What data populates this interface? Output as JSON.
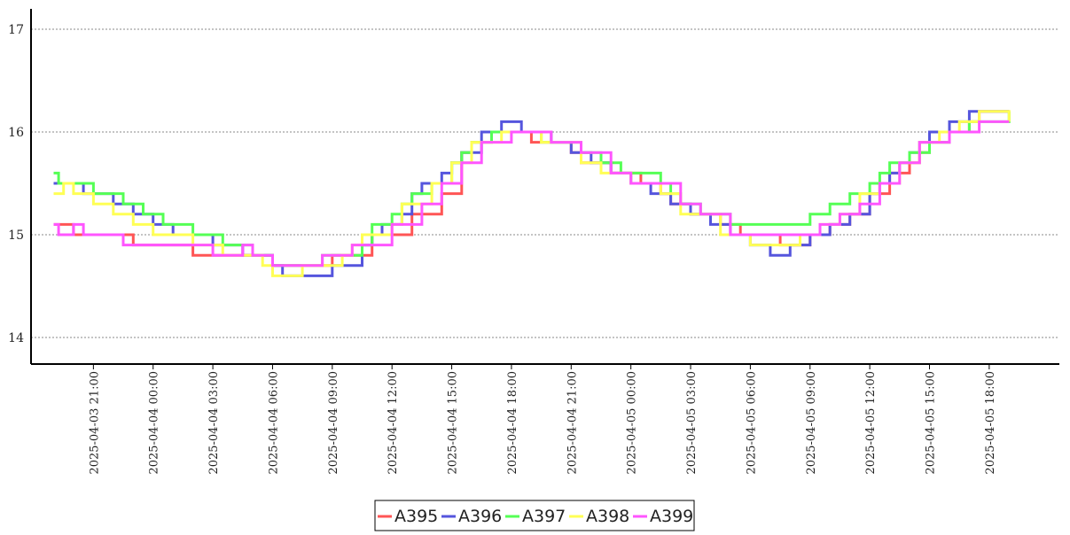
{
  "chart_data": {
    "type": "line",
    "title": "",
    "xlabel": "",
    "ylabel": "",
    "ylim": [
      13.7,
      17.2
    ],
    "y_ticks": [
      14,
      15,
      16,
      17
    ],
    "x_range": [
      "2025-04-03 18:00",
      "2025-04-05 20:30"
    ],
    "x_ticks": [
      "2025-04-03 21:00",
      "2025-04-04 00:00",
      "2025-04-04 03:00",
      "2025-04-04 06:00",
      "2025-04-04 09:00",
      "2025-04-04 12:00",
      "2025-04-04 15:00",
      "2025-04-04 18:00",
      "2025-04-04 21:00",
      "2025-04-05 00:00",
      "2025-04-05 03:00",
      "2025-04-05 06:00",
      "2025-04-05 09:00",
      "2025-04-05 12:00",
      "2025-04-05 15:00",
      "2025-04-05 18:00"
    ],
    "grid": "horizontal dotted",
    "legend_position": "bottom-center",
    "line_style": "step",
    "series": [
      {
        "name": "A395",
        "color": "#ff5555",
        "points": [
          [
            "2025-04-03 19:00",
            15.1
          ],
          [
            "2025-04-03 20:00",
            15.0
          ],
          [
            "2025-04-03 23:00",
            14.9
          ],
          [
            "2025-04-04 02:00",
            14.8
          ],
          [
            "2025-04-04 06:00",
            14.7
          ],
          [
            "2025-04-04 09:00",
            14.8
          ],
          [
            "2025-04-04 11:00",
            15.0
          ],
          [
            "2025-04-04 13:00",
            15.2
          ],
          [
            "2025-04-04 14:30",
            15.4
          ],
          [
            "2025-04-04 15:30",
            15.8
          ],
          [
            "2025-04-04 16:00",
            15.9
          ],
          [
            "2025-04-04 17:00",
            16.0
          ],
          [
            "2025-04-04 19:00",
            15.9
          ],
          [
            "2025-04-04 21:00",
            15.8
          ],
          [
            "2025-04-04 21:30",
            15.7
          ],
          [
            "2025-04-04 23:00",
            15.6
          ],
          [
            "2025-04-05 00:30",
            15.5
          ],
          [
            "2025-04-05 01:30",
            15.4
          ],
          [
            "2025-04-05 02:00",
            15.3
          ],
          [
            "2025-04-05 03:00",
            15.2
          ],
          [
            "2025-04-05 04:30",
            15.1
          ],
          [
            "2025-04-05 05:30",
            15.0
          ],
          [
            "2025-04-05 07:30",
            14.9
          ],
          [
            "2025-04-05 08:00",
            14.9
          ],
          [
            "2025-04-05 09:00",
            15.0
          ],
          [
            "2025-04-05 10:00",
            15.1
          ],
          [
            "2025-04-05 11:00",
            15.2
          ],
          [
            "2025-04-05 12:00",
            15.4
          ],
          [
            "2025-04-05 13:00",
            15.6
          ],
          [
            "2025-04-05 14:00",
            15.7
          ],
          [
            "2025-04-05 14:30",
            15.8
          ],
          [
            "2025-04-05 15:00",
            15.9
          ],
          [
            "2025-04-05 16:00",
            16.0
          ],
          [
            "2025-04-05 17:00",
            16.1
          ],
          [
            "2025-04-05 17:30",
            16.2
          ],
          [
            "2025-04-05 19:00",
            16.2
          ]
        ]
      },
      {
        "name": "A396",
        "color": "#5555dd",
        "points": [
          [
            "2025-04-03 19:00",
            15.5
          ],
          [
            "2025-04-03 20:30",
            15.4
          ],
          [
            "2025-04-03 22:00",
            15.3
          ],
          [
            "2025-04-03 23:00",
            15.2
          ],
          [
            "2025-04-04 00:00",
            15.1
          ],
          [
            "2025-04-04 01:00",
            15.0
          ],
          [
            "2025-04-04 03:00",
            14.9
          ],
          [
            "2025-04-04 04:30",
            14.8
          ],
          [
            "2025-04-04 06:00",
            14.7
          ],
          [
            "2025-04-04 06:30",
            14.6
          ],
          [
            "2025-04-04 09:00",
            14.7
          ],
          [
            "2025-04-04 10:30",
            14.9
          ],
          [
            "2025-04-04 11:00",
            15.0
          ],
          [
            "2025-04-04 11:30",
            15.1
          ],
          [
            "2025-04-04 12:30",
            15.2
          ],
          [
            "2025-04-04 13:00",
            15.4
          ],
          [
            "2025-04-04 13:30",
            15.5
          ],
          [
            "2025-04-04 14:30",
            15.6
          ],
          [
            "2025-04-04 15:00",
            15.7
          ],
          [
            "2025-04-04 15:30",
            15.8
          ],
          [
            "2025-04-04 16:30",
            16.0
          ],
          [
            "2025-04-04 17:30",
            16.1
          ],
          [
            "2025-04-04 18:30",
            16.0
          ],
          [
            "2025-04-04 20:00",
            15.9
          ],
          [
            "2025-04-04 21:00",
            15.8
          ],
          [
            "2025-04-04 22:00",
            15.7
          ],
          [
            "2025-04-04 23:00",
            15.6
          ],
          [
            "2025-04-05 00:00",
            15.5
          ],
          [
            "2025-04-05 01:00",
            15.4
          ],
          [
            "2025-04-05 02:00",
            15.3
          ],
          [
            "2025-04-05 03:00",
            15.2
          ],
          [
            "2025-04-05 04:00",
            15.1
          ],
          [
            "2025-04-05 05:00",
            15.0
          ],
          [
            "2025-04-05 06:00",
            14.9
          ],
          [
            "2025-04-05 07:00",
            14.8
          ],
          [
            "2025-04-05 08:00",
            14.9
          ],
          [
            "2025-04-05 09:00",
            15.0
          ],
          [
            "2025-04-05 10:00",
            15.1
          ],
          [
            "2025-04-05 11:00",
            15.2
          ],
          [
            "2025-04-05 12:00",
            15.4
          ],
          [
            "2025-04-05 12:30",
            15.5
          ],
          [
            "2025-04-05 13:00",
            15.6
          ],
          [
            "2025-04-05 13:30",
            15.7
          ],
          [
            "2025-04-05 14:00",
            15.8
          ],
          [
            "2025-04-05 14:30",
            15.9
          ],
          [
            "2025-04-05 15:00",
            16.0
          ],
          [
            "2025-04-05 16:00",
            16.1
          ],
          [
            "2025-04-05 17:00",
            16.2
          ],
          [
            "2025-04-05 19:00",
            16.2
          ]
        ]
      },
      {
        "name": "A397",
        "color": "#55ff55",
        "points": [
          [
            "2025-04-03 19:00",
            15.6
          ],
          [
            "2025-04-03 19:15",
            15.5
          ],
          [
            "2025-04-03 21:00",
            15.4
          ],
          [
            "2025-04-03 22:30",
            15.3
          ],
          [
            "2025-04-03 23:30",
            15.2
          ],
          [
            "2025-04-04 00:30",
            15.1
          ],
          [
            "2025-04-04 02:00",
            15.0
          ],
          [
            "2025-04-04 03:30",
            14.9
          ],
          [
            "2025-04-04 05:00",
            14.8
          ],
          [
            "2025-04-04 06:00",
            14.7
          ],
          [
            "2025-04-04 08:30",
            14.8
          ],
          [
            "2025-04-04 10:30",
            14.9
          ],
          [
            "2025-04-04 11:00",
            15.1
          ],
          [
            "2025-04-04 12:00",
            15.2
          ],
          [
            "2025-04-04 12:30",
            15.3
          ],
          [
            "2025-04-04 13:00",
            15.4
          ],
          [
            "2025-04-04 14:00",
            15.5
          ],
          [
            "2025-04-04 15:00",
            15.7
          ],
          [
            "2025-04-04 15:30",
            15.8
          ],
          [
            "2025-04-04 16:00",
            15.9
          ],
          [
            "2025-04-04 17:00",
            16.0
          ],
          [
            "2025-04-04 19:30",
            15.9
          ],
          [
            "2025-04-04 21:30",
            15.8
          ],
          [
            "2025-04-04 22:30",
            15.7
          ],
          [
            "2025-04-04 23:30",
            15.6
          ],
          [
            "2025-04-05 01:30",
            15.5
          ],
          [
            "2025-04-05 02:00",
            15.4
          ],
          [
            "2025-04-05 02:30",
            15.3
          ],
          [
            "2025-04-05 03:30",
            15.2
          ],
          [
            "2025-04-05 05:00",
            15.1
          ],
          [
            "2025-04-05 07:30",
            15.1
          ],
          [
            "2025-04-05 09:00",
            15.2
          ],
          [
            "2025-04-05 10:00",
            15.3
          ],
          [
            "2025-04-05 11:00",
            15.4
          ],
          [
            "2025-04-05 12:00",
            15.5
          ],
          [
            "2025-04-05 12:30",
            15.6
          ],
          [
            "2025-04-05 13:00",
            15.7
          ],
          [
            "2025-04-05 14:00",
            15.8
          ],
          [
            "2025-04-05 15:00",
            15.9
          ],
          [
            "2025-04-05 16:00",
            16.0
          ],
          [
            "2025-04-05 17:00",
            16.1
          ],
          [
            "2025-04-05 19:00",
            16.2
          ]
        ]
      },
      {
        "name": "A398",
        "color": "#ffff55",
        "points": [
          [
            "2025-04-03 19:00",
            15.4
          ],
          [
            "2025-04-03 19:30",
            15.5
          ],
          [
            "2025-04-03 20:00",
            15.4
          ],
          [
            "2025-04-03 21:00",
            15.3
          ],
          [
            "2025-04-03 22:00",
            15.2
          ],
          [
            "2025-04-03 23:00",
            15.1
          ],
          [
            "2025-04-04 00:00",
            15.0
          ],
          [
            "2025-04-04 02:00",
            14.9
          ],
          [
            "2025-04-04 03:30",
            14.8
          ],
          [
            "2025-04-04 05:30",
            14.7
          ],
          [
            "2025-04-04 06:00",
            14.6
          ],
          [
            "2025-04-04 07:30",
            14.7
          ],
          [
            "2025-04-04 09:30",
            14.8
          ],
          [
            "2025-04-04 10:00",
            14.9
          ],
          [
            "2025-04-04 10:30",
            15.0
          ],
          [
            "2025-04-04 12:00",
            15.1
          ],
          [
            "2025-04-04 12:30",
            15.3
          ],
          [
            "2025-04-04 14:00",
            15.5
          ],
          [
            "2025-04-04 15:00",
            15.7
          ],
          [
            "2025-04-04 16:00",
            15.9
          ],
          [
            "2025-04-04 17:30",
            16.0
          ],
          [
            "2025-04-04 19:30",
            15.9
          ],
          [
            "2025-04-04 21:30",
            15.7
          ],
          [
            "2025-04-04 22:30",
            15.6
          ],
          [
            "2025-04-05 00:00",
            15.5
          ],
          [
            "2025-04-05 01:30",
            15.4
          ],
          [
            "2025-04-05 02:30",
            15.2
          ],
          [
            "2025-04-05 04:30",
            15.0
          ],
          [
            "2025-04-05 06:00",
            14.9
          ],
          [
            "2025-04-05 08:30",
            15.0
          ],
          [
            "2025-04-05 09:30",
            15.1
          ],
          [
            "2025-04-05 10:30",
            15.2
          ],
          [
            "2025-04-05 11:30",
            15.4
          ],
          [
            "2025-04-05 12:30",
            15.5
          ],
          [
            "2025-04-05 13:30",
            15.7
          ],
          [
            "2025-04-05 14:30",
            15.9
          ],
          [
            "2025-04-05 15:30",
            16.0
          ],
          [
            "2025-04-05 16:30",
            16.1
          ],
          [
            "2025-04-05 17:30",
            16.2
          ],
          [
            "2025-04-05 19:00",
            16.1
          ]
        ]
      },
      {
        "name": "A399",
        "color": "#ff55ff",
        "points": [
          [
            "2025-04-03 19:00",
            15.1
          ],
          [
            "2025-04-03 19:15",
            15.0
          ],
          [
            "2025-04-03 20:00",
            15.1
          ],
          [
            "2025-04-03 20:30",
            15.0
          ],
          [
            "2025-04-03 22:00",
            15.0
          ],
          [
            "2025-04-03 22:30",
            14.9
          ],
          [
            "2025-04-04 02:00",
            14.9
          ],
          [
            "2025-04-04 03:00",
            14.8
          ],
          [
            "2025-04-04 04:30",
            14.9
          ],
          [
            "2025-04-04 05:00",
            14.8
          ],
          [
            "2025-04-04 06:00",
            14.7
          ],
          [
            "2025-04-04 08:30",
            14.8
          ],
          [
            "2025-04-04 10:00",
            14.9
          ],
          [
            "2025-04-04 12:00",
            15.1
          ],
          [
            "2025-04-04 13:30",
            15.3
          ],
          [
            "2025-04-04 14:30",
            15.5
          ],
          [
            "2025-04-04 15:30",
            15.7
          ],
          [
            "2025-04-04 16:30",
            15.9
          ],
          [
            "2025-04-04 18:00",
            16.0
          ],
          [
            "2025-04-04 20:00",
            15.9
          ],
          [
            "2025-04-04 21:30",
            15.8
          ],
          [
            "2025-04-04 23:00",
            15.6
          ],
          [
            "2025-04-05 00:00",
            15.5
          ],
          [
            "2025-04-05 02:30",
            15.3
          ],
          [
            "2025-04-05 03:30",
            15.2
          ],
          [
            "2025-04-05 05:00",
            15.0
          ],
          [
            "2025-04-05 08:00",
            15.0
          ],
          [
            "2025-04-05 09:30",
            15.1
          ],
          [
            "2025-04-05 10:30",
            15.2
          ],
          [
            "2025-04-05 11:30",
            15.3
          ],
          [
            "2025-04-05 12:30",
            15.5
          ],
          [
            "2025-04-05 13:30",
            15.7
          ],
          [
            "2025-04-05 14:30",
            15.9
          ],
          [
            "2025-04-05 16:00",
            16.0
          ],
          [
            "2025-04-05 17:30",
            16.1
          ],
          [
            "2025-04-05 19:00",
            16.1
          ]
        ]
      }
    ]
  }
}
